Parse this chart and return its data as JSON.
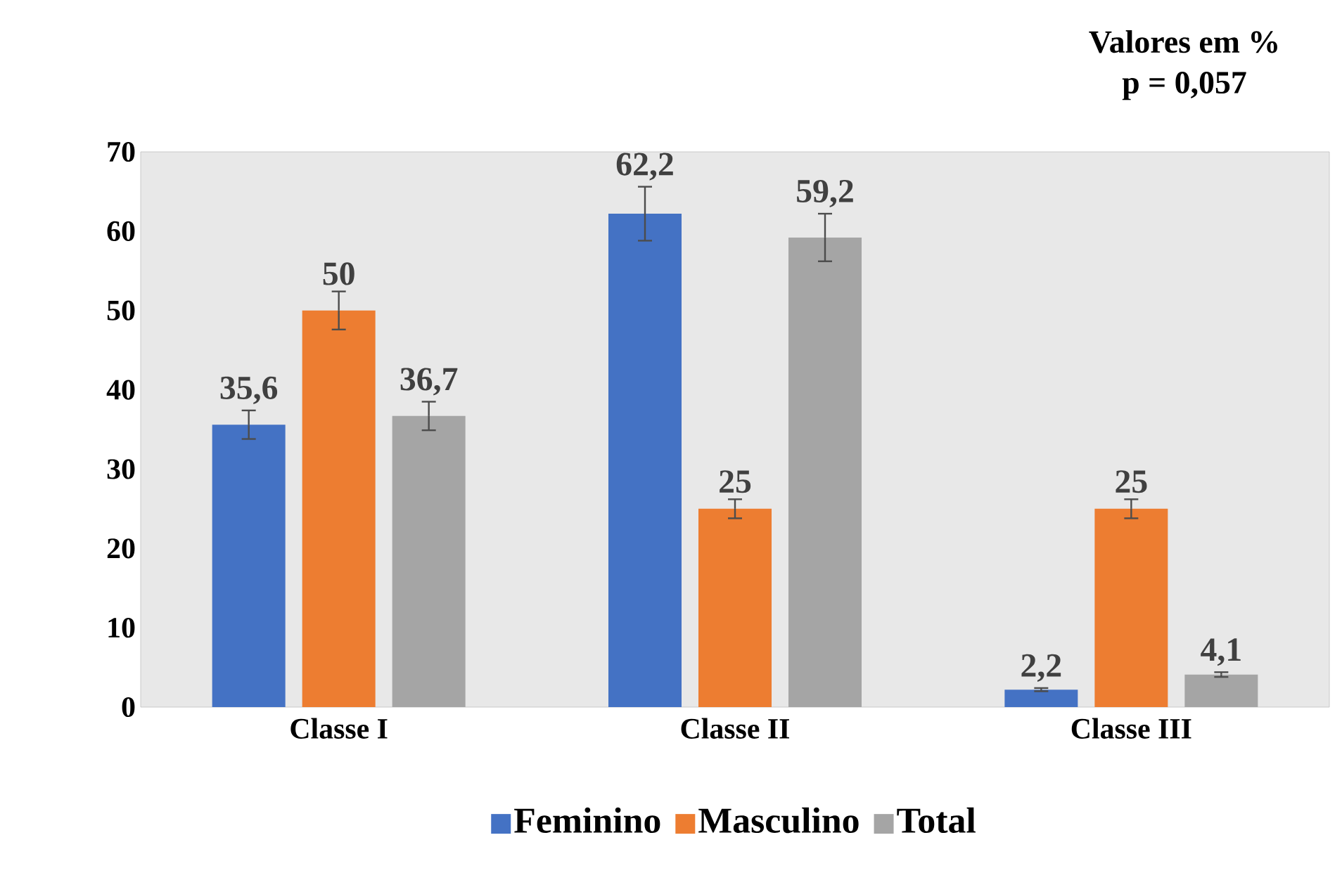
{
  "chart_data": {
    "type": "bar",
    "categories": [
      "Classe I",
      "Classe II",
      "Classe III"
    ],
    "series": [
      {
        "name": "Feminino",
        "color": "#4472c4",
        "values": [
          35.6,
          62.2,
          2.2
        ],
        "errors": [
          1.8,
          3.4,
          0.2
        ],
        "value_labels": [
          "35,6",
          "62,2",
          "2,2"
        ]
      },
      {
        "name": "Masculino",
        "color": "#ed7d31",
        "values": [
          50,
          25,
          25
        ],
        "errors": [
          2.4,
          1.2,
          1.2
        ],
        "value_labels": [
          "50",
          "25",
          "25"
        ]
      },
      {
        "name": "Total",
        "color": "#a5a5a5",
        "values": [
          36.7,
          59.2,
          4.1
        ],
        "errors": [
          1.8,
          3.0,
          0.3
        ],
        "value_labels": [
          "36,7",
          "59,2",
          "4,1"
        ]
      }
    ],
    "ylim": [
      0,
      70
    ],
    "yticks": [
      0,
      10,
      20,
      30,
      40,
      50,
      60,
      70
    ],
    "legend": "bottom",
    "annotations": [
      "Valores em %",
      "p = 0,057"
    ]
  }
}
